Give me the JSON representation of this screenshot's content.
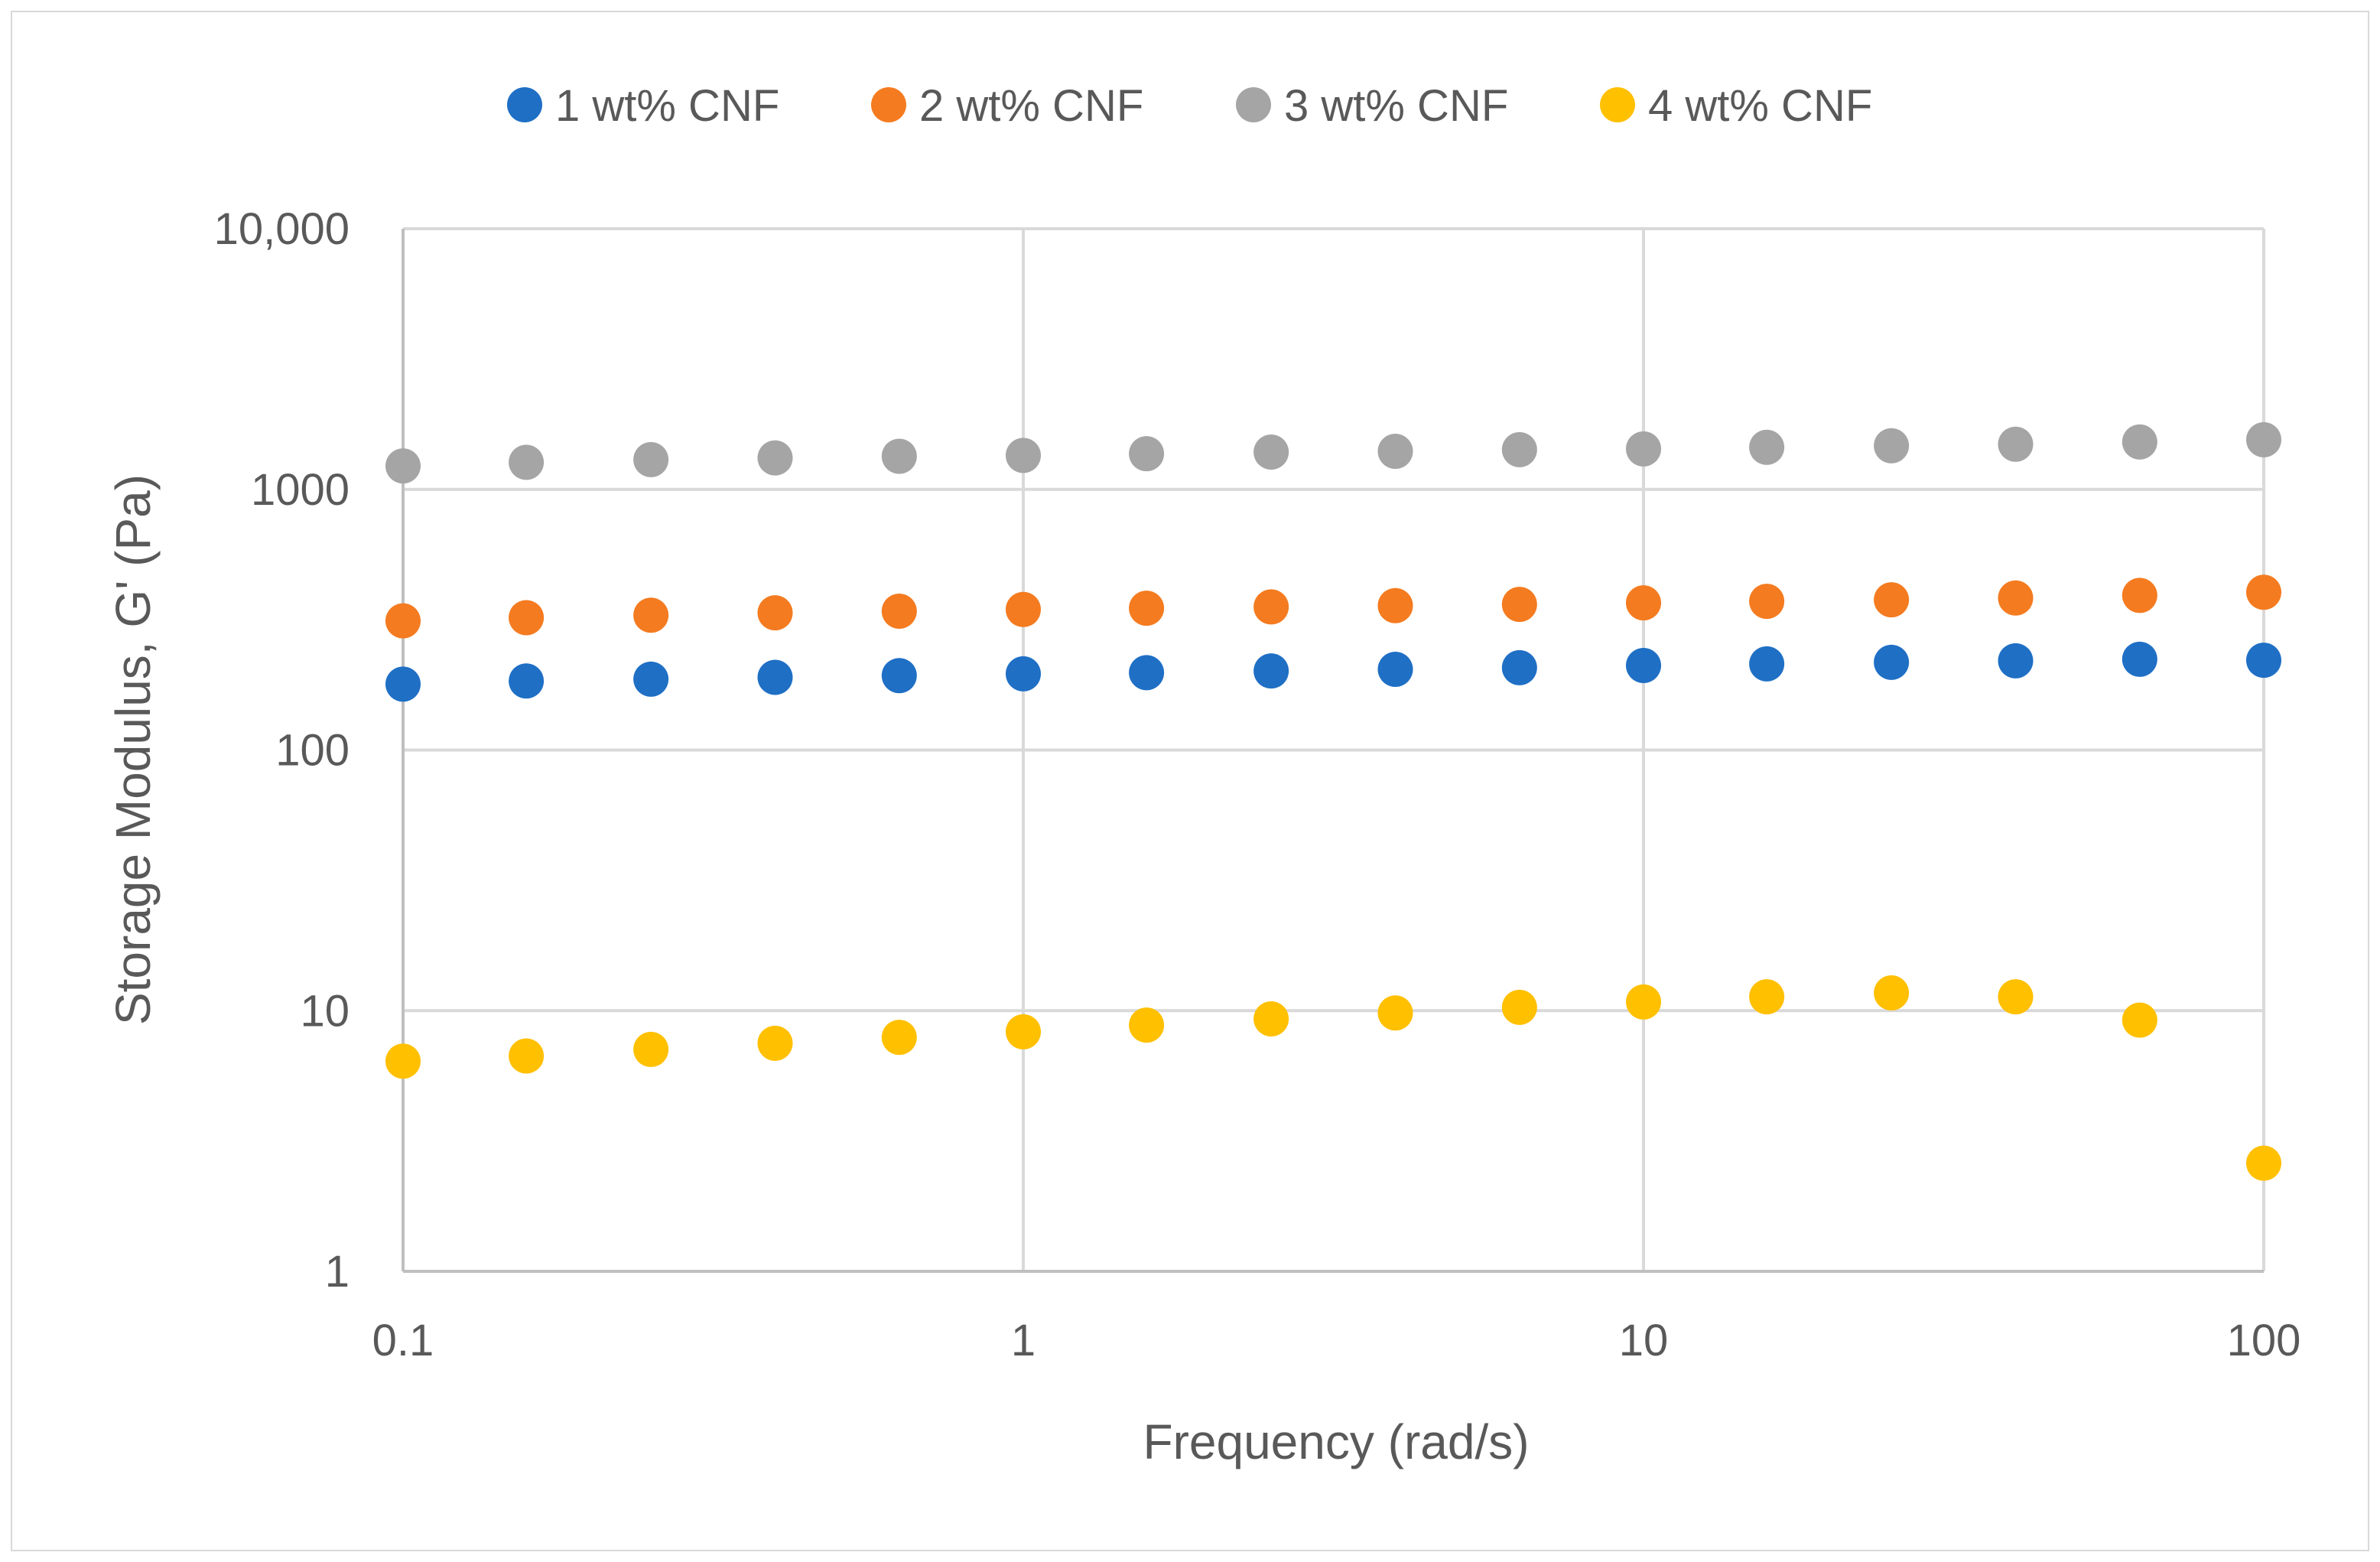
{
  "chart_data": {
    "type": "scatter",
    "title": "",
    "xlabel": "Frequency (rad/s)",
    "ylabel": "Storage Modulus, G' (Pa)",
    "x_scale": "log",
    "y_scale": "log",
    "xlim": [
      0.1,
      100
    ],
    "ylim": [
      1,
      10000
    ],
    "x_ticks": [
      0.1,
      1,
      10,
      100
    ],
    "x_tick_labels": [
      "0.1",
      "1",
      "10",
      "100"
    ],
    "y_ticks": [
      1,
      10,
      100,
      1000,
      10000
    ],
    "y_tick_labels": [
      "1",
      "10",
      "100",
      "1000",
      "10,000"
    ],
    "grid": true,
    "legend_position": "top",
    "x": [
      0.1,
      0.158,
      0.251,
      0.398,
      0.631,
      1,
      1.58,
      2.51,
      3.98,
      6.31,
      10,
      15.8,
      25.1,
      39.8,
      63.1,
      100
    ],
    "series": [
      {
        "name": "1 wt% CNF",
        "color": "#1f6fc5",
        "values": [
          179,
          184,
          187,
          190,
          193,
          196,
          198,
          201,
          204,
          207,
          211,
          214,
          217,
          220,
          223,
          221
        ]
      },
      {
        "name": "2 wt% CNF",
        "color": "#f47b20",
        "values": [
          313,
          322,
          329,
          336,
          341,
          346,
          350,
          354,
          358,
          362,
          367,
          372,
          377,
          383,
          392,
          403
        ]
      },
      {
        "name": "3 wt% CNF",
        "color": "#a5a5a5",
        "values": [
          1230,
          1270,
          1300,
          1320,
          1340,
          1350,
          1370,
          1390,
          1400,
          1420,
          1430,
          1450,
          1470,
          1490,
          1520,
          1550
        ]
      },
      {
        "name": "4 wt% CNF",
        "color": "#ffc000",
        "values": [
          6.4,
          6.7,
          7.1,
          7.5,
          7.9,
          8.3,
          8.8,
          9.3,
          9.8,
          10.3,
          10.8,
          11.3,
          11.7,
          11.3,
          9.2,
          2.6
        ]
      }
    ]
  }
}
